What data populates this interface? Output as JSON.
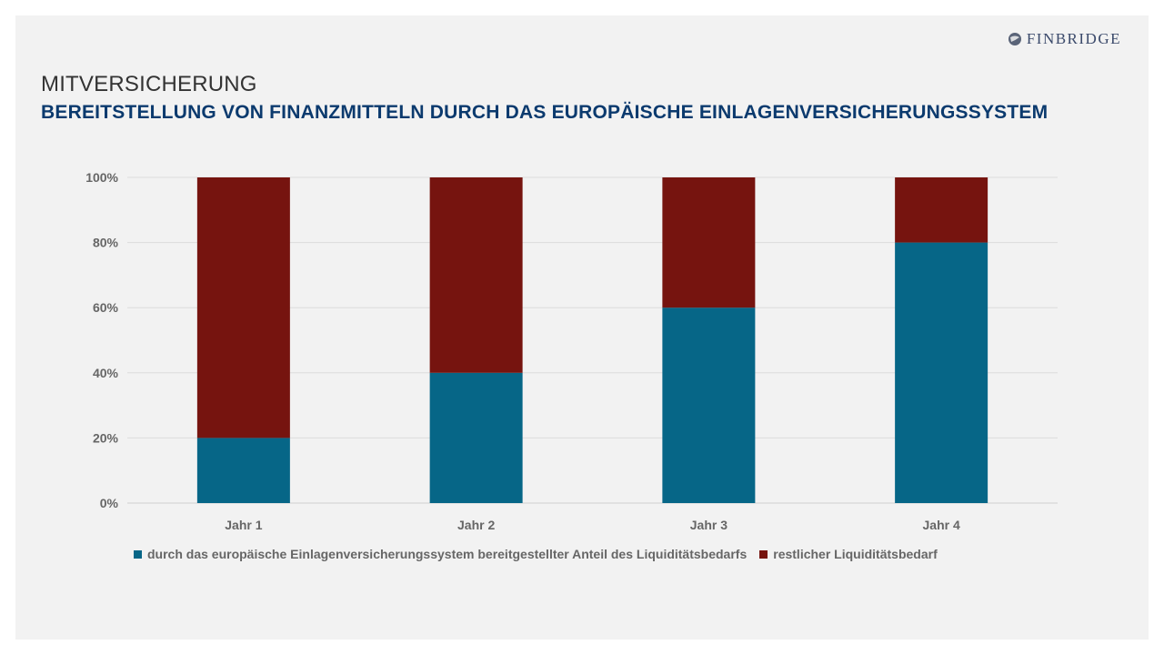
{
  "header": {
    "logo_text": "FINBRIDGE",
    "title": "MITVERSICHERUNG",
    "subtitle": "BEREITSTELLUNG VON FINANZMITTELN DURCH DAS EUROPÄISCHE EINLAGENVERSICHERUNGSSYSTEM"
  },
  "colors": {
    "background": "#f2f2f2",
    "series_1": "#066687",
    "series_2": "#76140f",
    "title_blue": "#0b3a6e"
  },
  "chart_data": {
    "type": "bar",
    "stacked": true,
    "categories": [
      "Jahr 1",
      "Jahr 2",
      "Jahr 3",
      "Jahr 4"
    ],
    "series": [
      {
        "name": "durch das europäische Einlagenversicherungssystem bereitgestellter Anteil des Liquiditätsbedarfs",
        "values": [
          20,
          40,
          60,
          80
        ],
        "color": "#066687"
      },
      {
        "name": "restlicher Liquiditätsbedarf",
        "values": [
          80,
          60,
          40,
          20
        ],
        "color": "#76140f"
      }
    ],
    "ylim": [
      0,
      100
    ],
    "yticks": [
      "0%",
      "20%",
      "40%",
      "60%",
      "80%",
      "100%"
    ],
    "grid": true,
    "legend_position": "bottom"
  }
}
